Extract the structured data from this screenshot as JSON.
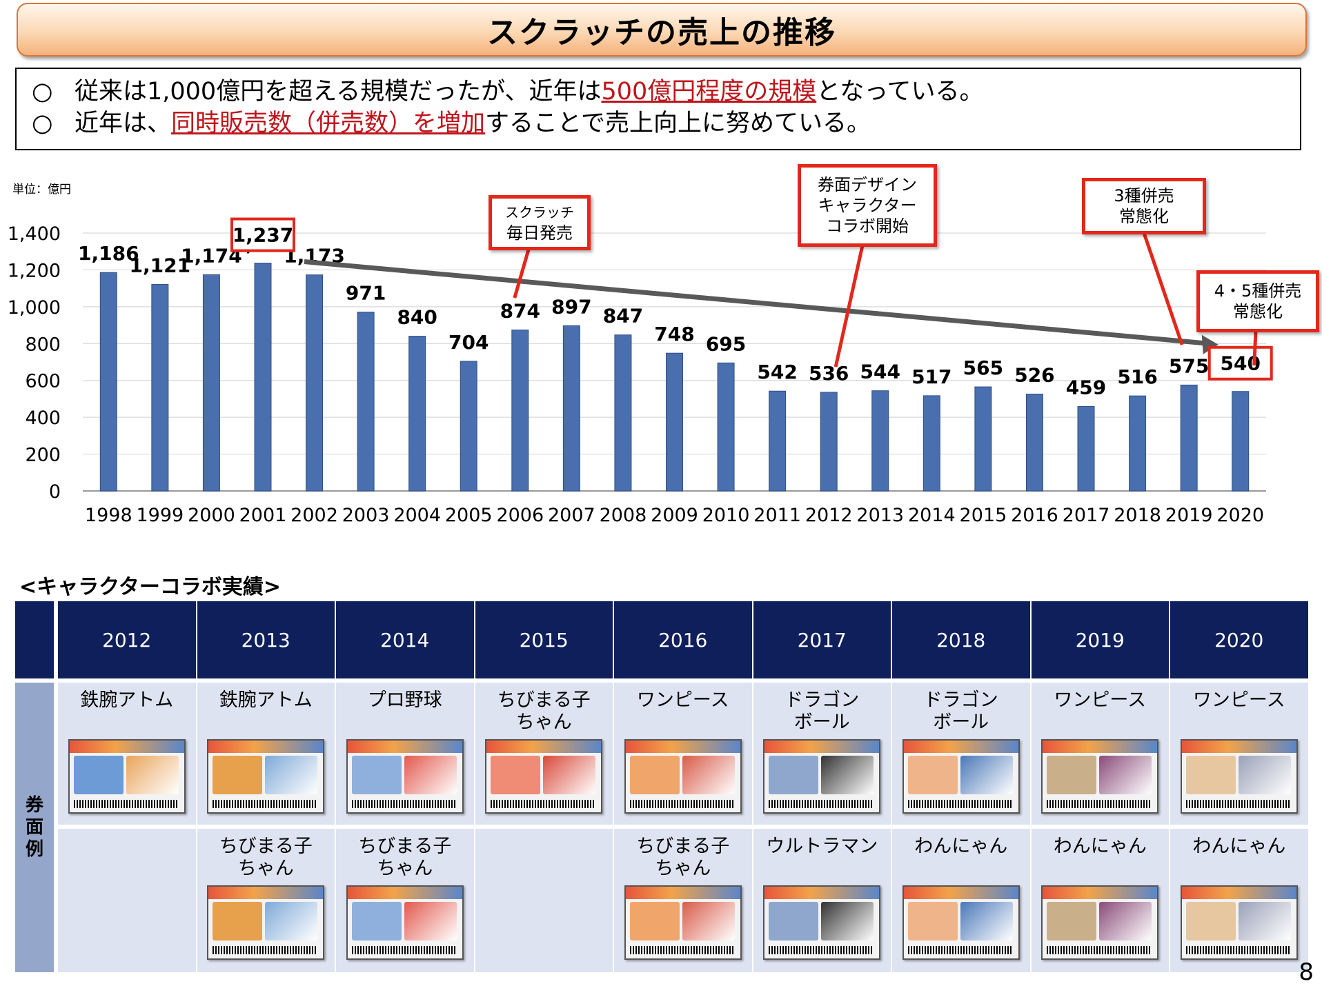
{
  "title": "スクラッチの売上の推移",
  "notes": [
    {
      "bullet": "○",
      "before": "従来は1,000億円を超える規模だったが、近年は",
      "highlight": "500億円程度の規模",
      "after": "となっている。"
    },
    {
      "bullet": "○",
      "before": "近年は、",
      "highlight": "同時販売数（併売数）を増加",
      "after": "することで売上向上に努めている。"
    }
  ],
  "unit_label": "単位：億円",
  "chart_data": {
    "type": "bar",
    "categories": [
      "1998",
      "1999",
      "2000",
      "2001",
      "2002",
      "2003",
      "2004",
      "2005",
      "2006",
      "2007",
      "2008",
      "2009",
      "2010",
      "2011",
      "2012",
      "2013",
      "2014",
      "2015",
      "2016",
      "2017",
      "2018",
      "2019",
      "2020"
    ],
    "values": [
      1186,
      1121,
      1174,
      1237,
      1173,
      971,
      840,
      704,
      874,
      897,
      847,
      748,
      695,
      542,
      536,
      544,
      517,
      565,
      526,
      459,
      516,
      575,
      540
    ],
    "value_labels": [
      "1,186",
      "1,121",
      "1,174",
      "1,237",
      "1,173",
      "971",
      "840",
      "704",
      "874",
      "897",
      "847",
      "748",
      "695",
      "542",
      "536",
      "544",
      "517",
      "565",
      "526",
      "459",
      "516",
      "575",
      "540"
    ],
    "yticks": [
      "0",
      "200",
      "400",
      "600",
      "800",
      "1,000",
      "1,200",
      "1,400"
    ],
    "ylim": [
      0,
      1400
    ],
    "grid": true,
    "bar_color": "#4a6fae",
    "trend_arrow": {
      "from": "2001",
      "to": "2020",
      "color": "#595959"
    }
  },
  "callouts": {
    "daily": {
      "line1": "スクラッチ",
      "line2": "毎日発売"
    },
    "design": {
      "line1": "券面デザイン",
      "line2": "キャラクター",
      "line3": "コラボ開始"
    },
    "three": {
      "line1": "3種併売",
      "line2": "常態化"
    },
    "four": {
      "line1": "4・5種併売",
      "line2": "常態化"
    }
  },
  "accent_color": "#e3271b",
  "collab": {
    "title": "<キャラクターコラボ実績>",
    "side_label": [
      "券",
      "面",
      "例"
    ],
    "years": [
      "2012",
      "2013",
      "2014",
      "2015",
      "2016",
      "2017",
      "2018",
      "2019",
      "2020"
    ],
    "row1": [
      "鉄腕アトム",
      "鉄腕アトム",
      "プロ野球",
      "ちびまる子ちゃん",
      "ワンピース",
      "ドラゴンボール",
      "ドラゴンボール",
      "ワンピース",
      "ワンピース"
    ],
    "row2": [
      "",
      "ちびまる子ちゃん",
      "ちびまる子ちゃん",
      "",
      "ちびまる子ちゃん",
      "ウルトラマン",
      "わんにゃん",
      "わんにゃん",
      "わんにゃん"
    ],
    "header_color": "#0e1f5b",
    "cell_color": "#dde3f0"
  },
  "page_number": "8"
}
